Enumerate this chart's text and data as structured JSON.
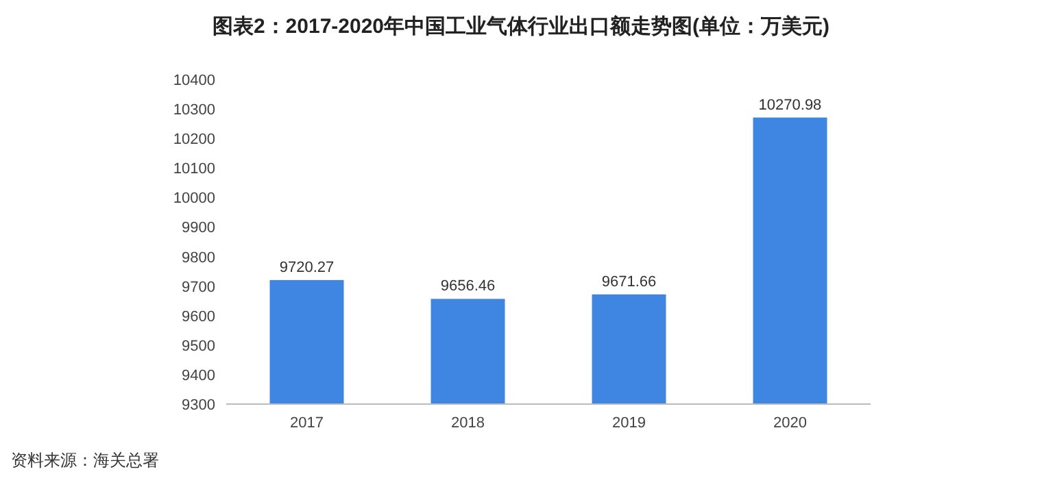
{
  "chart_data": {
    "type": "bar",
    "title": "图表2：2017-2020年中国工业气体行业出口额走势图(单位：万美元)",
    "categories": [
      "2017",
      "2018",
      "2019",
      "2020"
    ],
    "values": [
      9720.27,
      9656.46,
      9671.66,
      10270.98
    ],
    "color": "#3f86e3",
    "ylim": [
      9300,
      10400
    ],
    "yticks": [
      9300,
      9400,
      9500,
      9600,
      9700,
      9800,
      9900,
      10000,
      10100,
      10200,
      10300,
      10400
    ],
    "data_labels": true,
    "grid": false,
    "annotations": [
      "资料来源：海关总署"
    ]
  }
}
